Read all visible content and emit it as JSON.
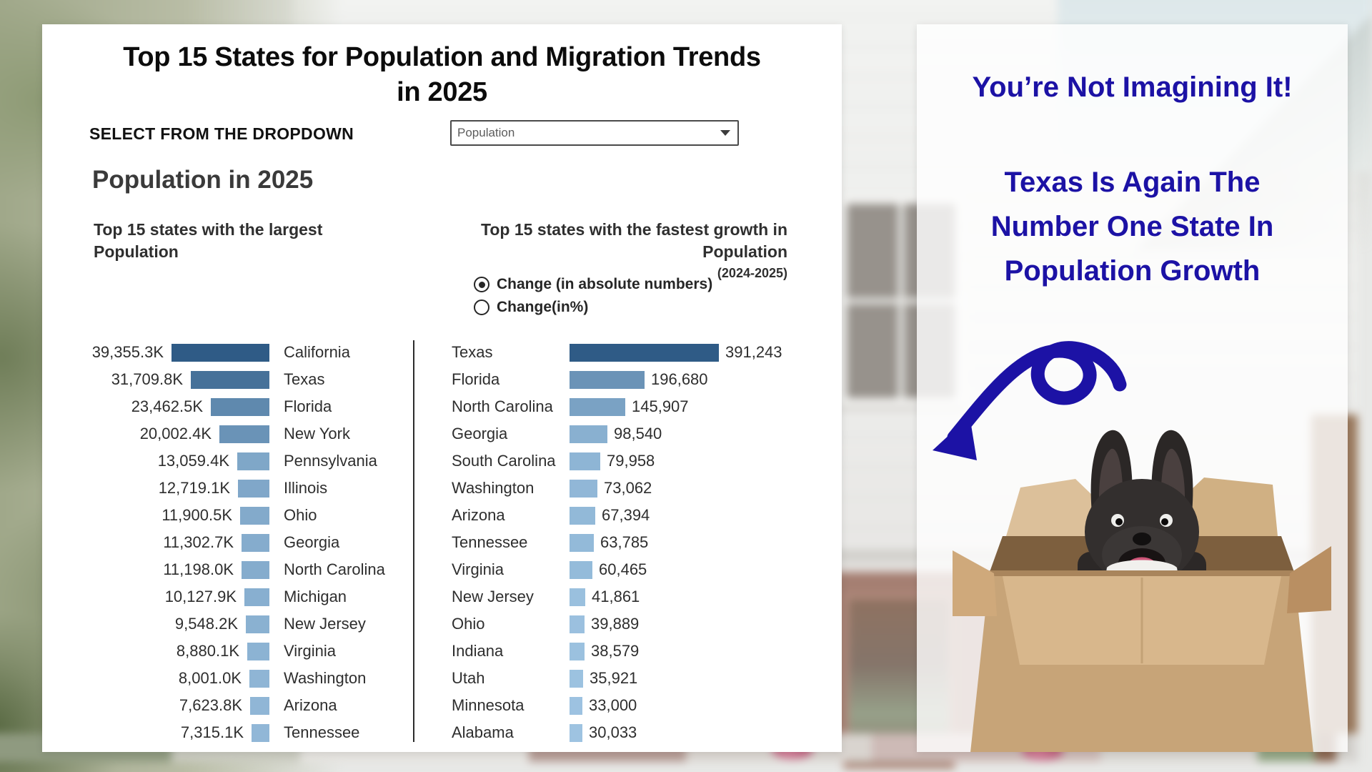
{
  "title": "Top 15 States for Population and Migration Trends in 2025",
  "controls": {
    "dropdown_label": "SELECT FROM THE DROPDOWN",
    "dropdown_value": "Population"
  },
  "section_heading": "Population in 2025",
  "chart_data": [
    {
      "type": "bar",
      "orientation": "horizontal",
      "position": "left",
      "title": "Top 15 states with the largest Population",
      "value_unit": "thousands of people",
      "categories": [
        "California",
        "Texas",
        "Florida",
        "New York",
        "Pennsylvania",
        "Illinois",
        "Ohio",
        "Georgia",
        "North Carolina",
        "Michigan",
        "New Jersey",
        "Virginia",
        "Washington",
        "Arizona",
        "Tennessee"
      ],
      "values": [
        39355.3,
        31709.8,
        23462.5,
        20002.4,
        13059.4,
        12719.1,
        11900.5,
        11302.7,
        11198.0,
        10127.9,
        9548.2,
        8880.1,
        8001.0,
        7623.8,
        7315.1
      ],
      "value_labels": [
        "39,355.3K",
        "31,709.8K",
        "23,462.5K",
        "20,002.4K",
        "13,059.4K",
        "12,719.1K",
        "11,900.5K",
        "11,302.7K",
        "11,198.0K",
        "10,127.9K",
        "9,548.2K",
        "8,880.1K",
        "8,001.0K",
        "7,623.8K",
        "7,315.1K"
      ],
      "max_value": 39355.3,
      "bar_anchor": "right",
      "grid": false,
      "legend": false
    },
    {
      "type": "bar",
      "orientation": "horizontal",
      "position": "right",
      "title": "Top 15 states with the fastest growth in Population",
      "subtitle": "(2024-2025)",
      "options": [
        {
          "label": "Change (in absolute numbers)",
          "selected": true
        },
        {
          "label": "Change(in%)",
          "selected": false
        }
      ],
      "categories": [
        "Texas",
        "Florida",
        "North Carolina",
        "Georgia",
        "South Carolina",
        "Washington",
        "Arizona",
        "Tennessee",
        "Virginia",
        "New Jersey",
        "Ohio",
        "Indiana",
        "Utah",
        "Minnesota",
        "Alabama"
      ],
      "values": [
        391243,
        196680,
        145907,
        98540,
        79958,
        73062,
        67394,
        63785,
        60465,
        41861,
        39889,
        38579,
        35921,
        33000,
        30033
      ],
      "value_labels": [
        "391,243",
        "196,680",
        "145,907",
        "98,540",
        "79,958",
        "73,062",
        "67,394",
        "63,785",
        "60,465",
        "41,861",
        "39,889",
        "38,579",
        "35,921",
        "33,000",
        "30,033"
      ],
      "max_value": 391243,
      "bar_anchor": "left",
      "grid": false,
      "legend": false
    }
  ],
  "right_panel": {
    "headline": "You’re Not Imagining It!",
    "subheadline": "Texas Is Again The Number One State In Population Growth",
    "arrow_icon": "curly-arrow-down-left",
    "illustration": "french-bulldog-in-moving-box"
  },
  "colors": {
    "accent_blue": "#1c12a5",
    "bar_dark": "#2f5b86",
    "bar_light": "#a7cce9",
    "card_bg": "#ffffff",
    "text_dark": "#2e2e2e"
  }
}
